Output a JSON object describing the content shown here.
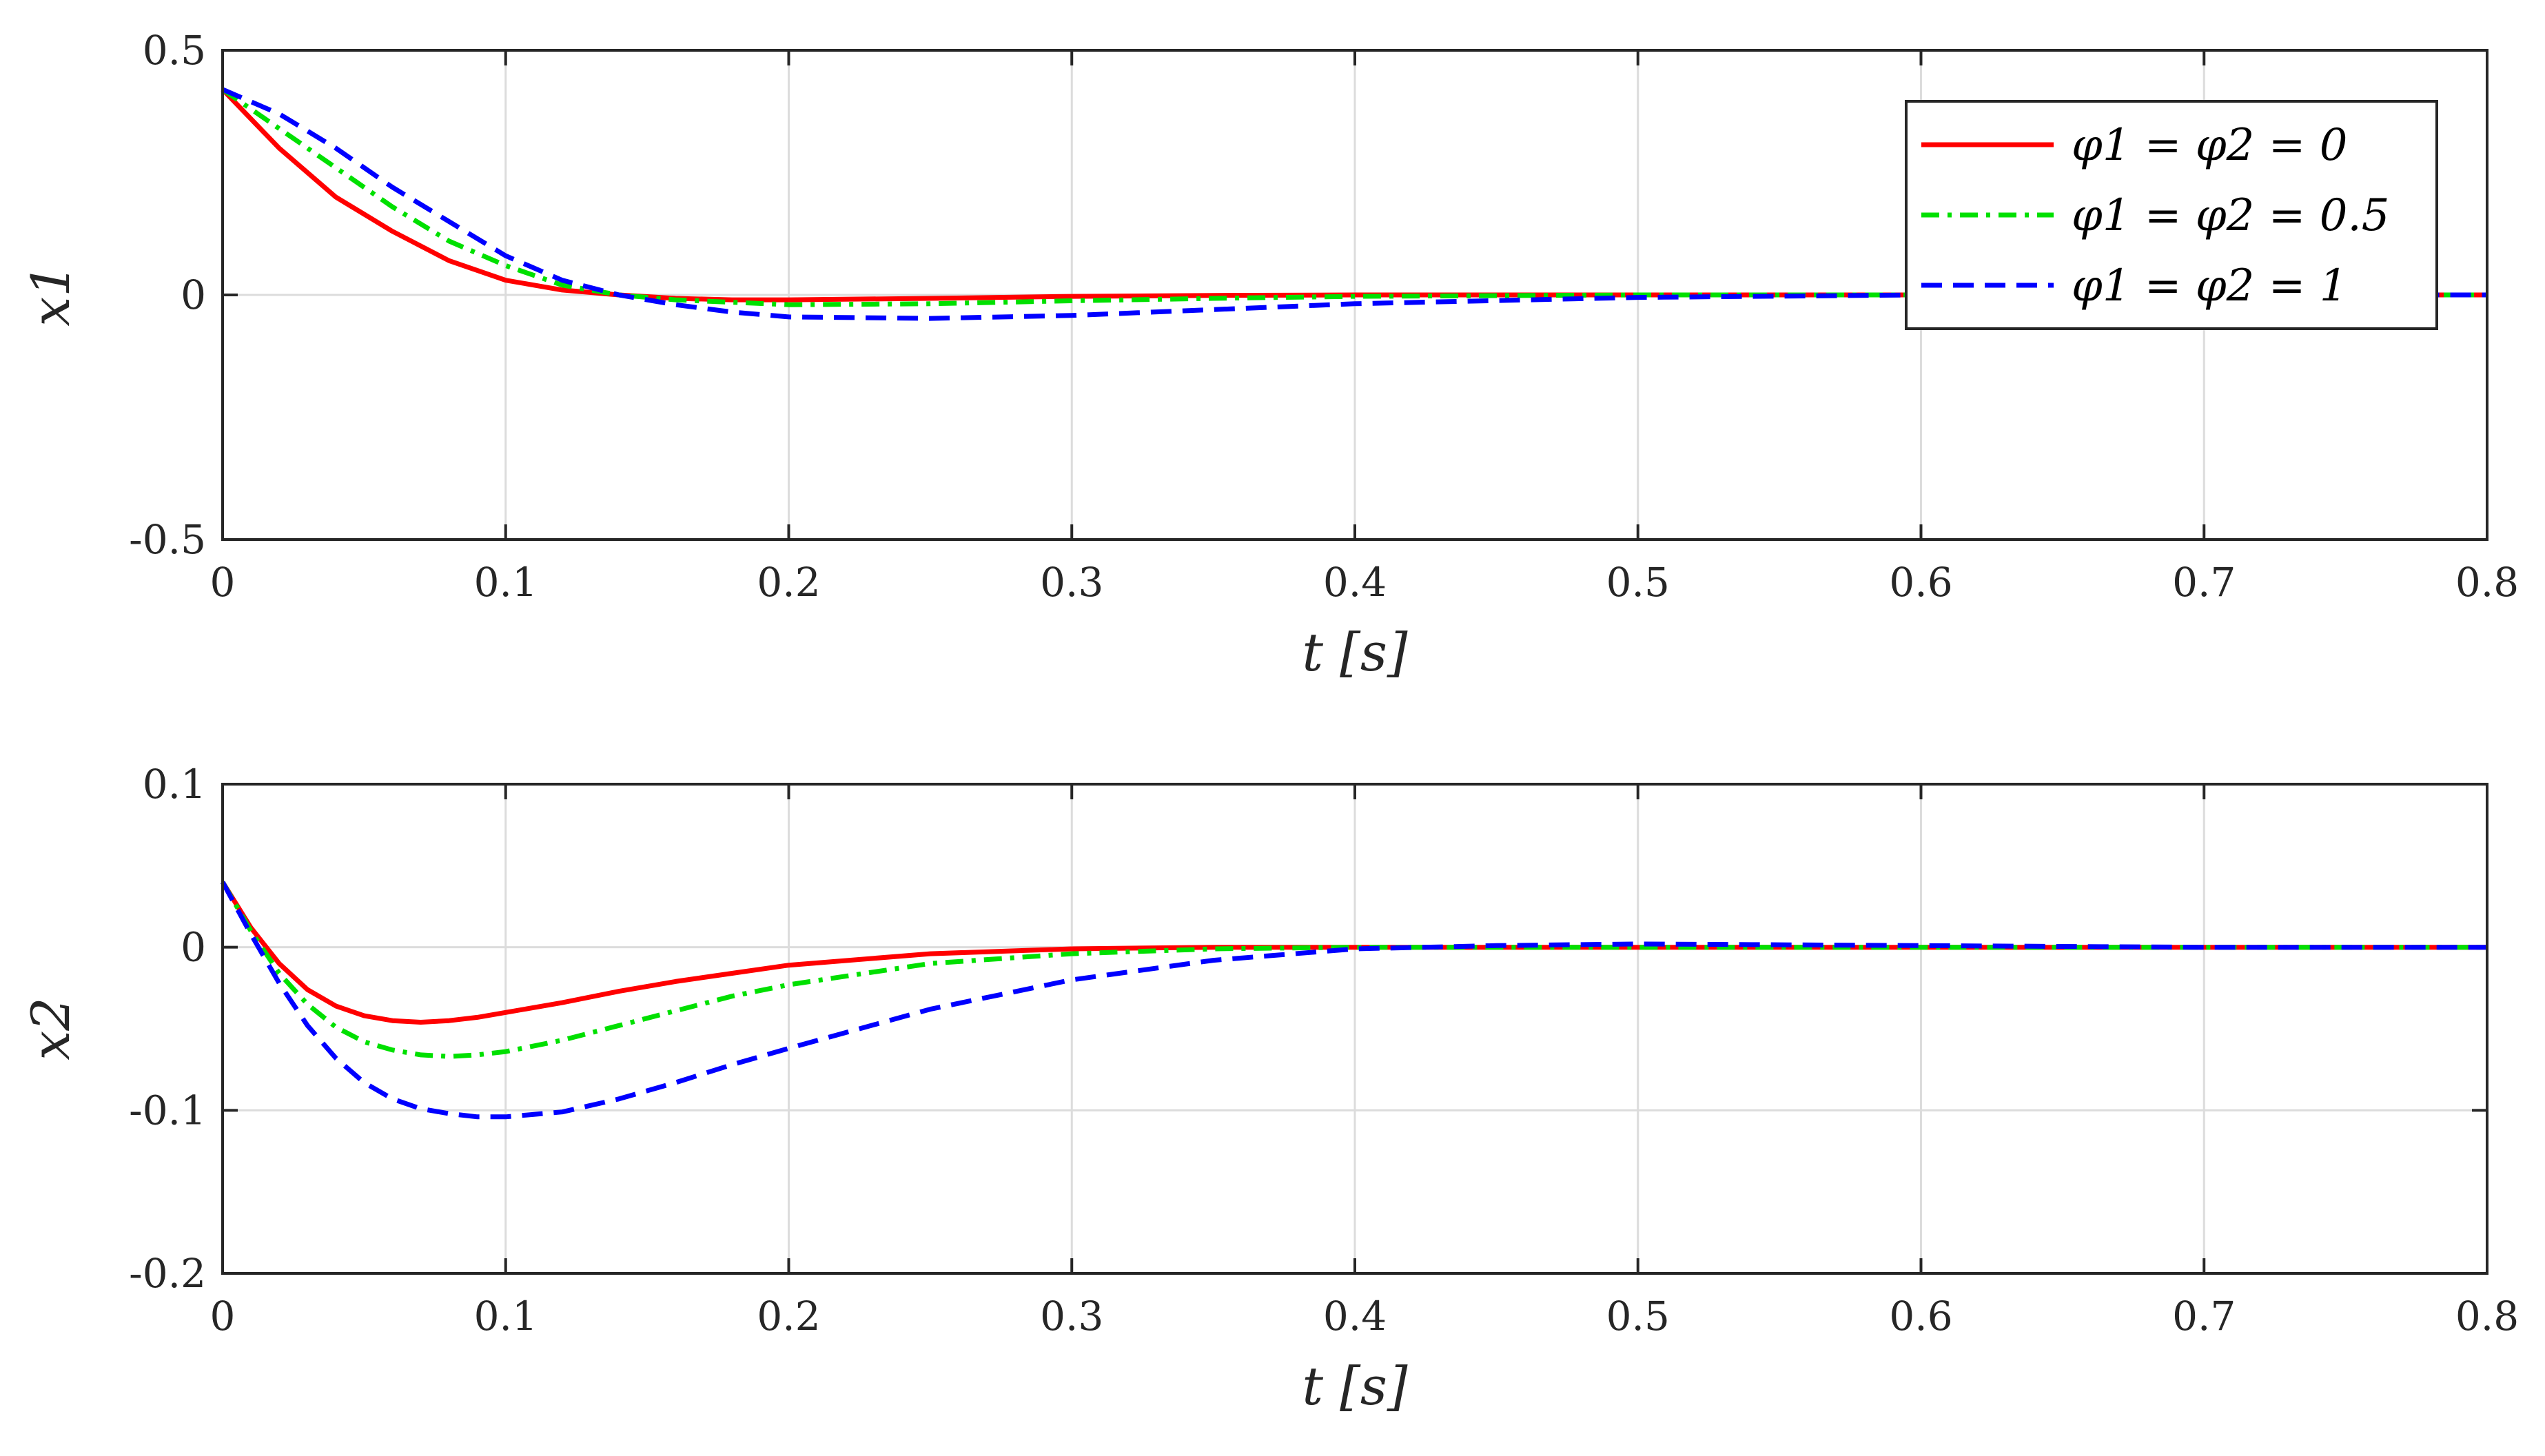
{
  "chart_data": [
    {
      "type": "line",
      "xlabel": "t [s]",
      "ylabel": "x1",
      "xlim": [
        0,
        0.8
      ],
      "ylim": [
        -0.5,
        0.5
      ],
      "xticks": [
        "0",
        "0.1",
        "0.2",
        "0.3",
        "0.4",
        "0.5",
        "0.6",
        "0.7",
        "0.8"
      ],
      "yticks": [
        "0.5",
        "0",
        "-0.5"
      ],
      "grid": true,
      "legend": "top-right",
      "x": [
        0,
        0.02,
        0.04,
        0.06,
        0.08,
        0.1,
        0.12,
        0.14,
        0.16,
        0.18,
        0.2,
        0.25,
        0.3,
        0.35,
        0.4,
        0.5,
        0.6,
        0.7,
        0.8
      ],
      "series": [
        {
          "name": "φ1 = φ2 = 0",
          "color": "#ff0000",
          "dash": "solid",
          "values": [
            0.42,
            0.3,
            0.2,
            0.13,
            0.07,
            0.03,
            0.01,
            0.0,
            -0.007,
            -0.01,
            -0.01,
            -0.007,
            -0.003,
            -0.001,
            0.0,
            0.0,
            0.0,
            0.0,
            0.0
          ]
        },
        {
          "name": "φ1 = φ2 = 0.5",
          "color": "#00e000",
          "dash": "dashdot",
          "values": [
            0.42,
            0.34,
            0.26,
            0.18,
            0.11,
            0.06,
            0.02,
            0.0,
            -0.01,
            -0.015,
            -0.02,
            -0.018,
            -0.012,
            -0.007,
            -0.003,
            0.0,
            0.0,
            0.0,
            0.0
          ]
        },
        {
          "name": "φ1 = φ2 = 1",
          "color": "#0000ff",
          "dash": "dashed",
          "values": [
            0.42,
            0.37,
            0.3,
            0.22,
            0.15,
            0.08,
            0.03,
            0.0,
            -0.02,
            -0.035,
            -0.045,
            -0.048,
            -0.042,
            -0.03,
            -0.018,
            -0.005,
            0.0,
            0.0,
            0.0
          ]
        }
      ]
    },
    {
      "type": "line",
      "xlabel": "t [s]",
      "ylabel": "x2",
      "xlim": [
        0,
        0.8
      ],
      "ylim": [
        -0.2,
        0.1
      ],
      "xticks": [
        "0",
        "0.1",
        "0.2",
        "0.3",
        "0.4",
        "0.5",
        "0.6",
        "0.7",
        "0.8"
      ],
      "yticks": [
        "0.1",
        "0",
        "-0.1",
        "-0.2"
      ],
      "grid": true,
      "x": [
        0,
        0.01,
        0.02,
        0.03,
        0.04,
        0.05,
        0.06,
        0.07,
        0.08,
        0.09,
        0.1,
        0.12,
        0.14,
        0.16,
        0.18,
        0.2,
        0.25,
        0.3,
        0.35,
        0.4,
        0.45,
        0.5,
        0.6,
        0.7,
        0.8
      ],
      "series": [
        {
          "name": "φ1 = φ2 = 0",
          "color": "#ff0000",
          "dash": "solid",
          "values": [
            0.04,
            0.012,
            -0.01,
            -0.026,
            -0.036,
            -0.042,
            -0.045,
            -0.046,
            -0.045,
            -0.043,
            -0.04,
            -0.034,
            -0.027,
            -0.021,
            -0.016,
            -0.011,
            -0.004,
            -0.001,
            0.0,
            0.0,
            0.0,
            0.0,
            0.0,
            0.0,
            0.0
          ]
        },
        {
          "name": "φ1 = φ2 = 0.5",
          "color": "#00e000",
          "dash": "dashdot",
          "values": [
            0.04,
            0.01,
            -0.016,
            -0.035,
            -0.049,
            -0.058,
            -0.063,
            -0.066,
            -0.067,
            -0.066,
            -0.064,
            -0.057,
            -0.048,
            -0.039,
            -0.03,
            -0.023,
            -0.01,
            -0.004,
            -0.001,
            0.0,
            0.0,
            0.0,
            0.0,
            0.0,
            0.0
          ]
        },
        {
          "name": "φ1 = φ2 = 1",
          "color": "#0000ff",
          "dash": "dashed",
          "values": [
            0.04,
            0.008,
            -0.022,
            -0.048,
            -0.068,
            -0.083,
            -0.093,
            -0.099,
            -0.102,
            -0.104,
            -0.104,
            -0.101,
            -0.093,
            -0.083,
            -0.072,
            -0.062,
            -0.038,
            -0.02,
            -0.008,
            -0.001,
            0.001,
            0.002,
            0.001,
            0.0,
            0.0
          ]
        }
      ]
    }
  ]
}
